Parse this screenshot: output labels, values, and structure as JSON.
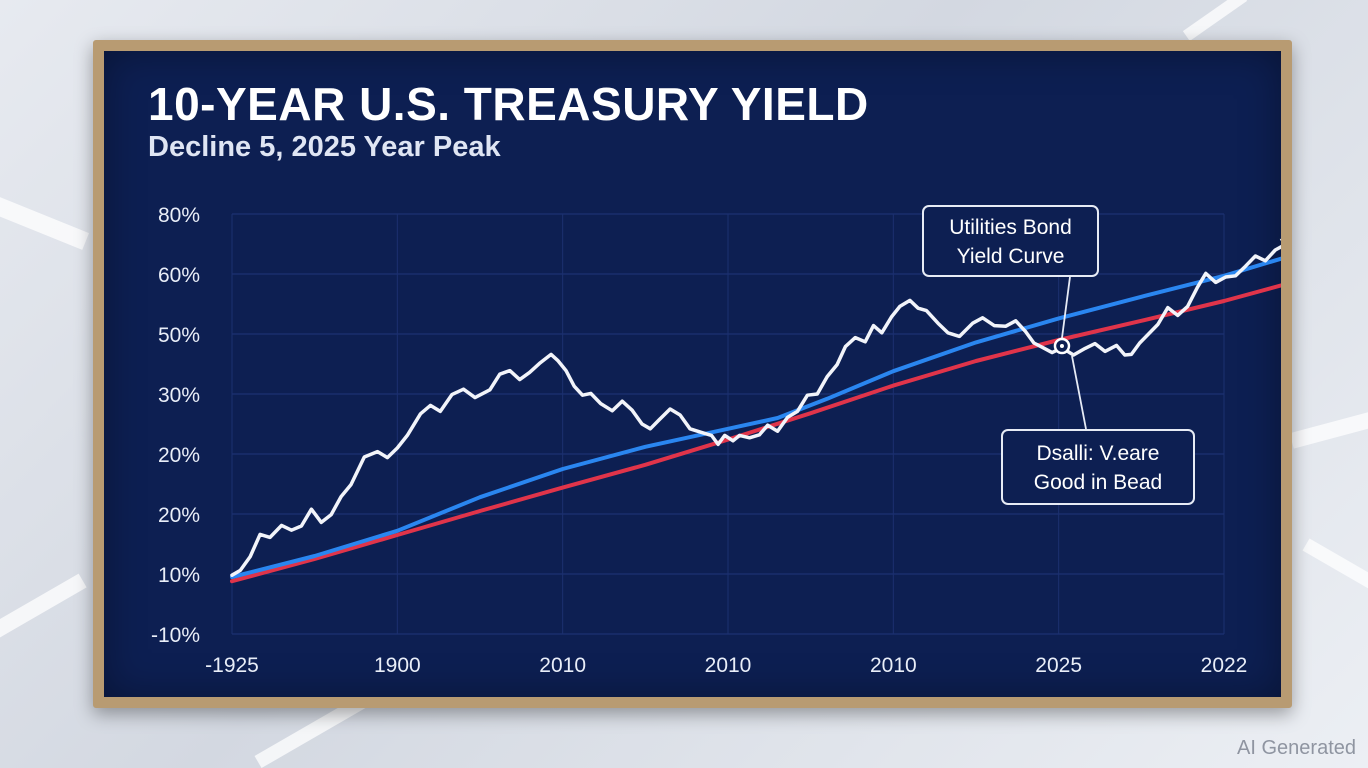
{
  "chart_data": {
    "type": "line",
    "title": "10-YEAR U.S. TREASURY YIELD",
    "subtitle": "Decline 5, 2025 Year Peak",
    "x_tick_labels": [
      "-1925",
      "1900",
      "2010",
      "2010",
      "2010",
      "2025",
      "2022"
    ],
    "y_tick_labels": [
      "80%",
      "60%",
      "50%",
      "30%",
      "20%",
      "20%",
      "10%",
      "-10%"
    ],
    "y_range_ticks": [
      0,
      7
    ],
    "grid": true,
    "colors": {
      "yield": "#f2f4fa",
      "curve_blue": "#2a86f0",
      "curve_red": "#e0344a"
    },
    "series": [
      {
        "key": "yield",
        "values": [
          [
            0.0,
            0.98
          ],
          [
            0.05,
            1.06
          ],
          [
            0.11,
            1.29
          ],
          [
            0.17,
            1.66
          ],
          [
            0.23,
            1.61
          ],
          [
            0.3,
            1.81
          ],
          [
            0.36,
            1.73
          ],
          [
            0.42,
            1.8
          ],
          [
            0.48,
            2.08
          ],
          [
            0.54,
            1.86
          ],
          [
            0.6,
            1.99
          ],
          [
            0.66,
            2.29
          ],
          [
            0.72,
            2.49
          ],
          [
            0.8,
            2.95
          ],
          [
            0.88,
            3.04
          ],
          [
            0.94,
            2.94
          ],
          [
            1.0,
            3.1
          ],
          [
            1.06,
            3.31
          ],
          [
            1.14,
            3.67
          ],
          [
            1.2,
            3.81
          ],
          [
            1.26,
            3.71
          ],
          [
            1.33,
            3.99
          ],
          [
            1.4,
            4.08
          ],
          [
            1.47,
            3.94
          ],
          [
            1.56,
            4.07
          ],
          [
            1.62,
            4.33
          ],
          [
            1.68,
            4.39
          ],
          [
            1.74,
            4.24
          ],
          [
            1.8,
            4.36
          ],
          [
            1.86,
            4.51
          ],
          [
            1.93,
            4.66
          ],
          [
            1.97,
            4.56
          ],
          [
            2.02,
            4.39
          ],
          [
            2.07,
            4.13
          ],
          [
            2.12,
            3.98
          ],
          [
            2.17,
            4.01
          ],
          [
            2.23,
            3.84
          ],
          [
            2.3,
            3.72
          ],
          [
            2.36,
            3.88
          ],
          [
            2.42,
            3.73
          ],
          [
            2.48,
            3.5
          ],
          [
            2.53,
            3.42
          ],
          [
            2.58,
            3.56
          ],
          [
            2.65,
            3.75
          ],
          [
            2.71,
            3.65
          ],
          [
            2.77,
            3.42
          ],
          [
            2.84,
            3.36
          ],
          [
            2.9,
            3.31
          ],
          [
            2.94,
            3.16
          ],
          [
            2.98,
            3.31
          ],
          [
            3.03,
            3.22
          ],
          [
            3.07,
            3.31
          ],
          [
            3.13,
            3.27
          ],
          [
            3.19,
            3.32
          ],
          [
            3.24,
            3.48
          ],
          [
            3.3,
            3.38
          ],
          [
            3.36,
            3.61
          ],
          [
            3.42,
            3.71
          ],
          [
            3.48,
            3.98
          ],
          [
            3.54,
            4.0
          ],
          [
            3.6,
            4.29
          ],
          [
            3.66,
            4.49
          ],
          [
            3.71,
            4.79
          ],
          [
            3.77,
            4.94
          ],
          [
            3.83,
            4.87
          ],
          [
            3.88,
            5.14
          ],
          [
            3.93,
            5.02
          ],
          [
            3.99,
            5.29
          ],
          [
            4.04,
            5.46
          ],
          [
            4.1,
            5.56
          ],
          [
            4.15,
            5.43
          ],
          [
            4.2,
            5.39
          ],
          [
            4.27,
            5.18
          ],
          [
            4.33,
            5.02
          ],
          [
            4.4,
            4.96
          ],
          [
            4.48,
            5.18
          ],
          [
            4.54,
            5.27
          ],
          [
            4.61,
            5.14
          ],
          [
            4.68,
            5.13
          ],
          [
            4.74,
            5.22
          ],
          [
            4.8,
            5.04
          ],
          [
            4.85,
            4.85
          ],
          [
            4.9,
            4.78
          ],
          [
            4.96,
            4.69
          ],
          [
            5.02,
            4.77
          ],
          [
            5.09,
            4.65
          ],
          [
            5.16,
            4.76
          ],
          [
            5.22,
            4.84
          ],
          [
            5.28,
            4.71
          ],
          [
            5.35,
            4.81
          ],
          [
            5.4,
            4.65
          ],
          [
            5.44,
            4.66
          ],
          [
            5.49,
            4.85
          ],
          [
            5.54,
            4.99
          ],
          [
            5.6,
            5.16
          ],
          [
            5.66,
            5.44
          ],
          [
            5.72,
            5.31
          ],
          [
            5.78,
            5.46
          ],
          [
            5.84,
            5.78
          ],
          [
            5.89,
            6.01
          ],
          [
            5.95,
            5.86
          ],
          [
            6.01,
            5.95
          ],
          [
            6.07,
            5.97
          ],
          [
            6.13,
            6.13
          ],
          [
            6.19,
            6.3
          ],
          [
            6.25,
            6.22
          ],
          [
            6.31,
            6.4
          ],
          [
            6.37,
            6.49
          ]
        ]
      },
      {
        "key": "curve_blue",
        "values": [
          [
            0.0,
            0.95
          ],
          [
            0.5,
            1.3
          ],
          [
            1.0,
            1.72
          ],
          [
            1.5,
            2.28
          ],
          [
            2.0,
            2.75
          ],
          [
            2.5,
            3.12
          ],
          [
            3.0,
            3.42
          ],
          [
            3.3,
            3.6
          ],
          [
            3.6,
            3.92
          ],
          [
            4.0,
            4.38
          ],
          [
            4.5,
            4.86
          ],
          [
            5.0,
            5.26
          ],
          [
            5.5,
            5.62
          ],
          [
            6.0,
            5.97
          ],
          [
            6.4,
            6.3
          ]
        ]
      },
      {
        "key": "curve_red",
        "values": [
          [
            0.0,
            0.88
          ],
          [
            0.5,
            1.25
          ],
          [
            1.0,
            1.65
          ],
          [
            1.5,
            2.05
          ],
          [
            2.0,
            2.44
          ],
          [
            2.5,
            2.82
          ],
          [
            3.0,
            3.24
          ],
          [
            3.5,
            3.68
          ],
          [
            4.0,
            4.14
          ],
          [
            4.5,
            4.55
          ],
          [
            5.0,
            4.9
          ],
          [
            5.5,
            5.22
          ],
          [
            6.0,
            5.55
          ],
          [
            6.4,
            5.85
          ]
        ]
      }
    ],
    "annotations": [
      {
        "lines": [
          "Utilities Bond",
          "Yield  Curve"
        ]
      },
      {
        "lines": [
          "Dsalli: V.eare",
          "Good in Bead"
        ]
      }
    ]
  },
  "watermark": "AI Generated"
}
